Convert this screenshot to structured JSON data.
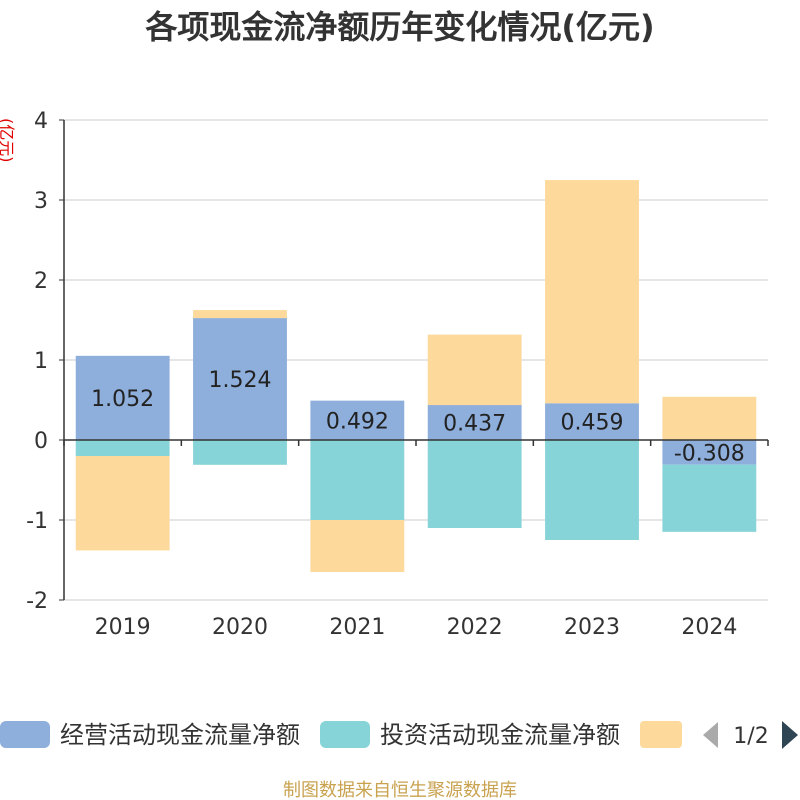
{
  "chart_data": {
    "type": "bar",
    "stacked": true,
    "title": "各项现金流净额历年变化情况(亿元)",
    "ylabel": "(亿元)",
    "xlabel": "",
    "categories": [
      "2019",
      "2020",
      "2021",
      "2022",
      "2023",
      "2024"
    ],
    "yticks": [
      4,
      3,
      2,
      1,
      0,
      -1,
      -2
    ],
    "ylim": [
      -2,
      4
    ],
    "grid": true,
    "legend_position": "bottom",
    "series": [
      {
        "name": "经营活动现金流量净额",
        "color": "#8eaedb",
        "show_value_labels": true,
        "values": [
          1.052,
          1.524,
          0.492,
          0.437,
          0.459,
          -0.308
        ]
      },
      {
        "name": "投资活动现金流量净额",
        "color": "#86d4d8",
        "values": [
          -0.2,
          -0.31,
          -1.0,
          -1.1,
          -1.25,
          -0.84
        ]
      },
      {
        "name": "",
        "color": "#fdd99b",
        "values": [
          -1.18,
          0.1,
          -0.65,
          0.88,
          2.79,
          0.54
        ]
      }
    ]
  },
  "legend": {
    "page": "1/2",
    "prev_icon": "triangle-left-icon",
    "next_icon": "triangle-right-icon"
  },
  "footer": "制图数据来自恒生聚源数据库"
}
